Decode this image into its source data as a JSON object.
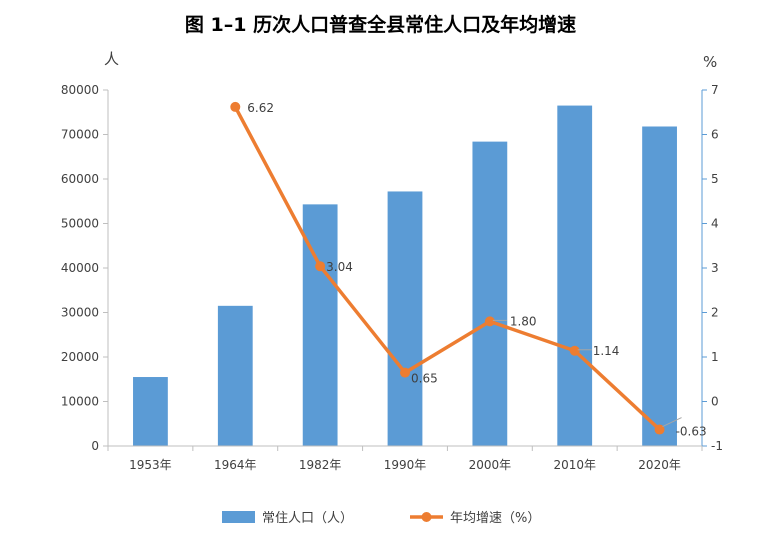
{
  "chart_data": {
    "type": "bar+line",
    "title": "图 1–1  历次人口普查全县常住人口及年均增速",
    "categories": [
      "1953年",
      "1964年",
      "1982年",
      "1990年",
      "2000年",
      "2010年",
      "2020年"
    ],
    "series": [
      {
        "name": "常住人口（人）",
        "type": "bar",
        "axis": "left",
        "color": "#5B9BD5",
        "values": [
          15500,
          31500,
          54300,
          57200,
          68400,
          76500,
          71800
        ]
      },
      {
        "name": "年均增速（%）",
        "type": "line",
        "axis": "right",
        "color": "#ED7D31",
        "values": [
          null,
          6.62,
          3.04,
          0.65,
          1.8,
          1.14,
          -0.63
        ],
        "labels": [
          "",
          "6.62",
          "3.04",
          "0.65",
          "1.80",
          "1.14",
          "-0.63"
        ]
      }
    ],
    "y_left": {
      "unit": "人",
      "min": 0,
      "max": 80000,
      "step": 10000,
      "ticks": [
        "0",
        "10000",
        "20000",
        "30000",
        "40000",
        "50000",
        "60000",
        "70000",
        "80000"
      ]
    },
    "y_right": {
      "unit": "%",
      "min": -1,
      "max": 7,
      "step": 1,
      "ticks": [
        "-1",
        "0",
        "1",
        "2",
        "3",
        "4",
        "5",
        "6",
        "7"
      ]
    },
    "legend": {
      "position": "bottom",
      "items": [
        "常住人口（人）",
        "年均增速（%）"
      ]
    }
  }
}
